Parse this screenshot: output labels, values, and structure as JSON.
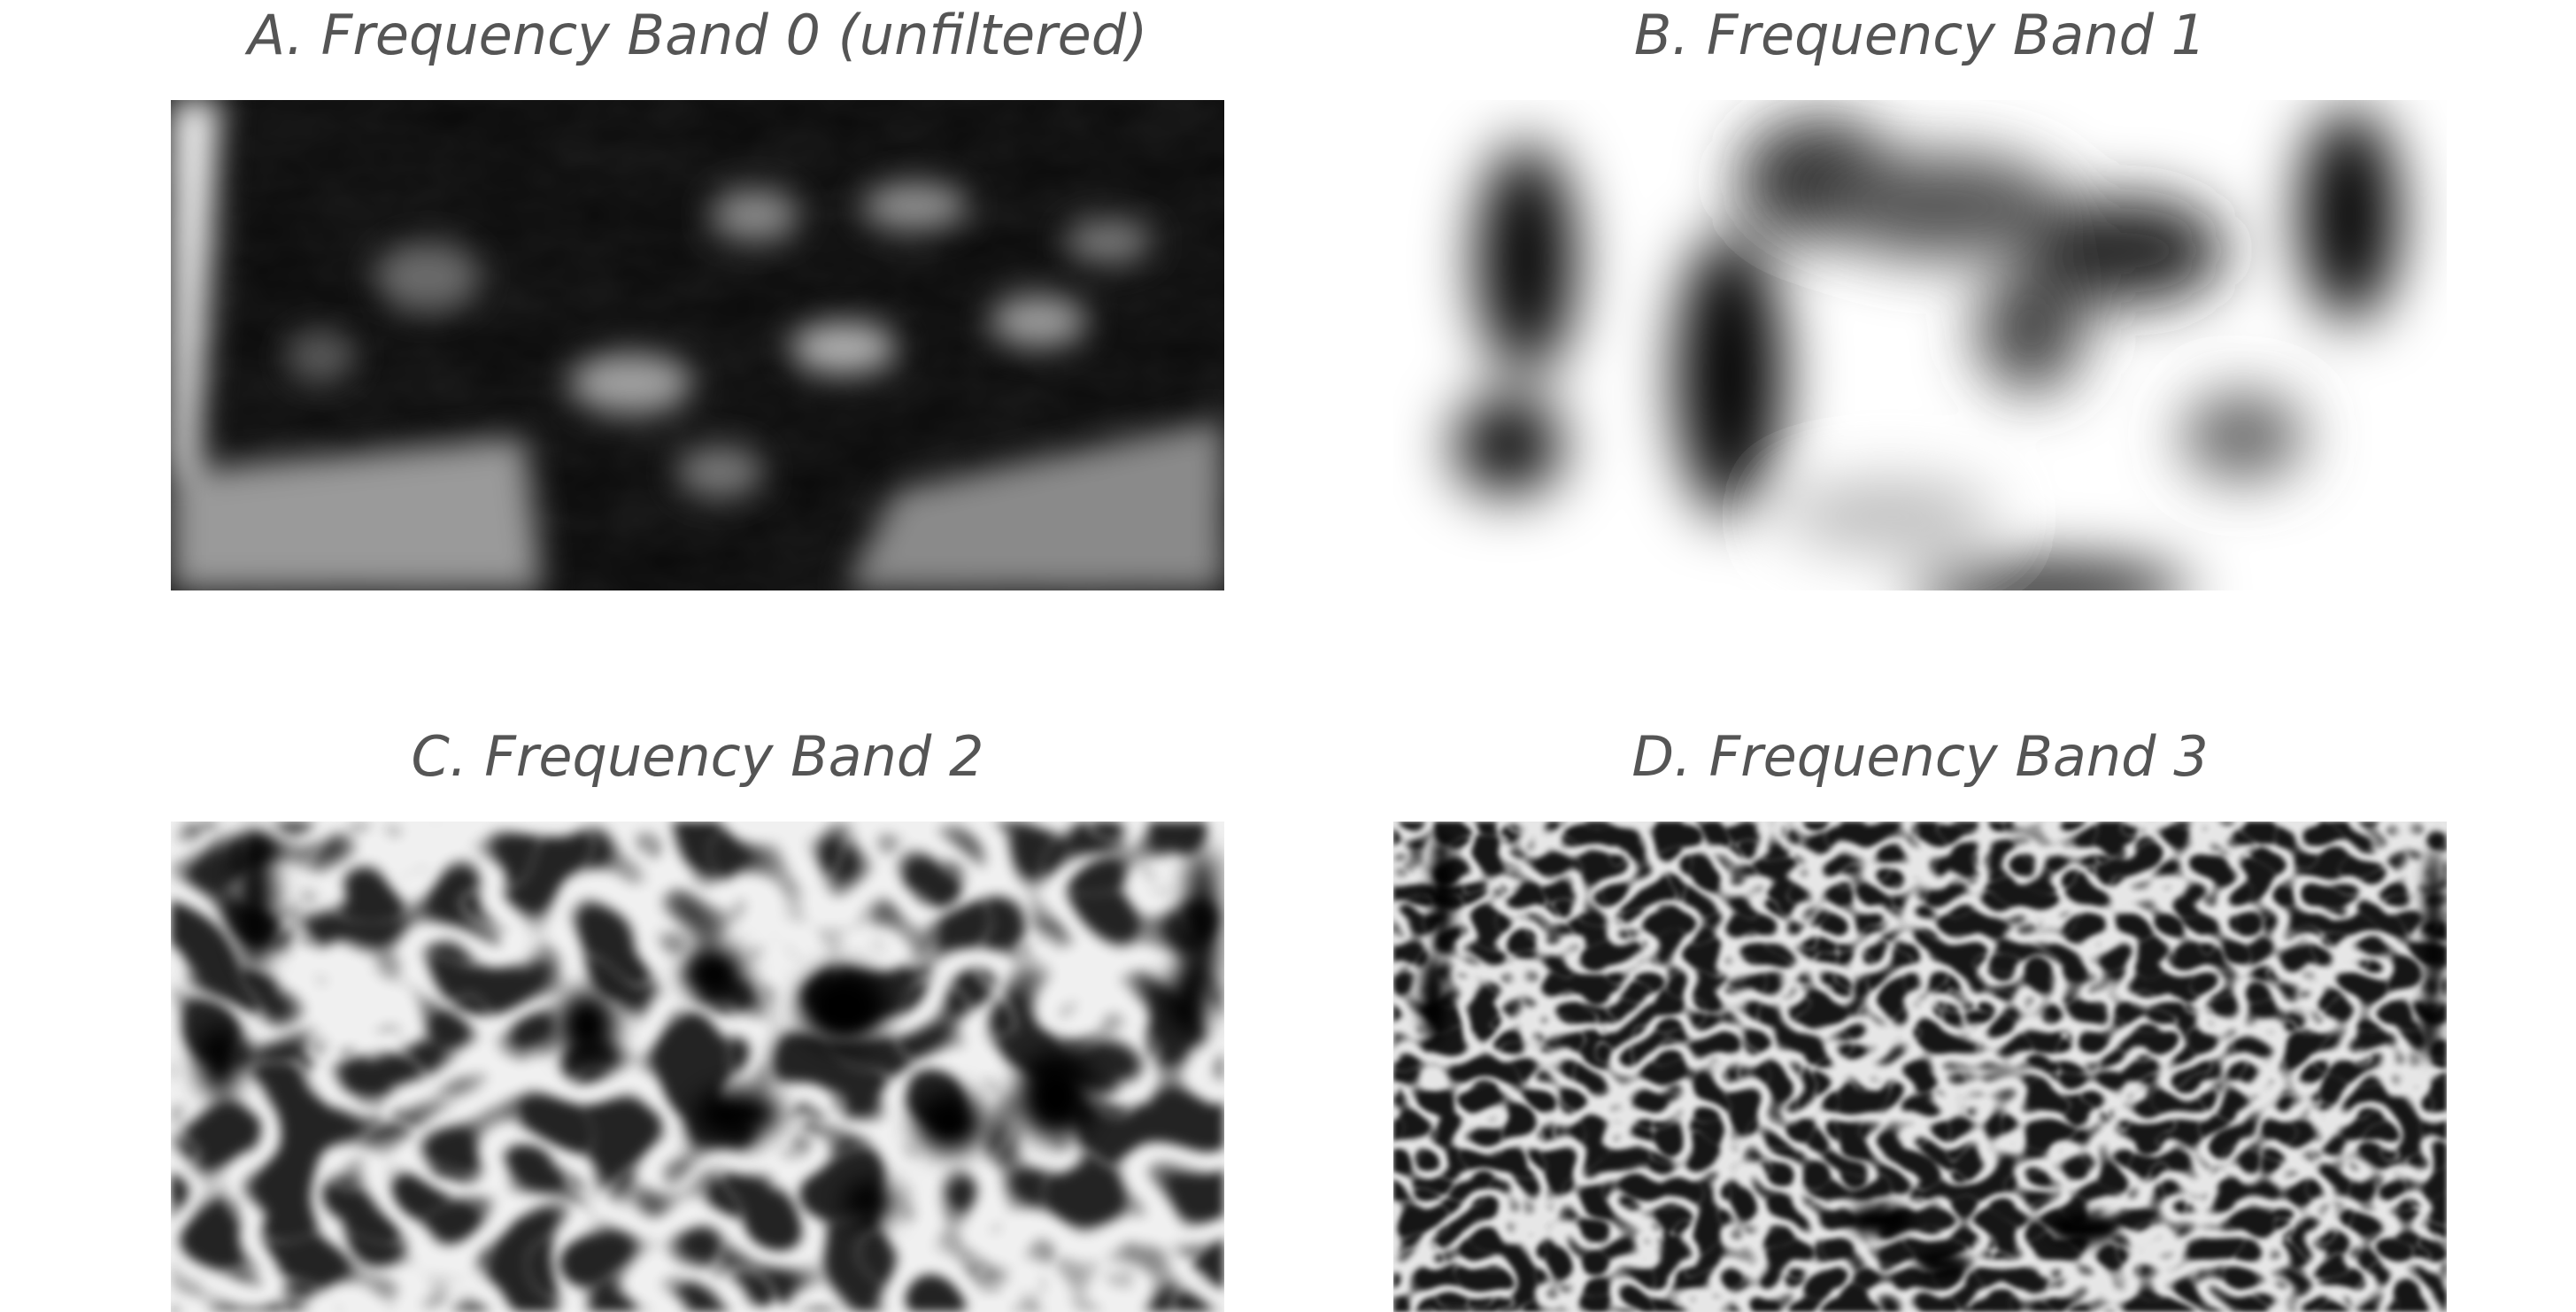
{
  "figure": {
    "panels": [
      {
        "id": "a",
        "title": "A. Frequency Band 0 (unfiltered)",
        "image": "unfiltered-grayscale-texture"
      },
      {
        "id": "b",
        "title": "B. Frequency Band 1",
        "image": "low-frequency-blobs"
      },
      {
        "id": "c",
        "title": "C. Frequency Band 2",
        "image": "mid-frequency-blobs"
      },
      {
        "id": "d",
        "title": "D. Frequency Band 3",
        "image": "high-frequency-texture"
      }
    ]
  }
}
